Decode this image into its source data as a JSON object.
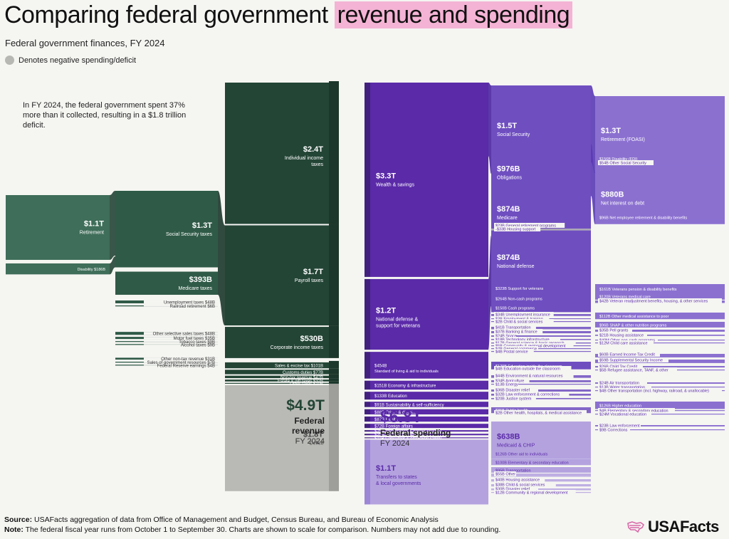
{
  "header": {
    "title_part1": "Comparing federal government ",
    "title_highlight": "revenue and spending",
    "subtitle": "Federal government finances, FY 2024",
    "legend_label": "Denotes negative spending/deficit",
    "annotation": "In FY 2024, the federal government spent 37% more than it collected, resulting in a $1.8 trillion deficit."
  },
  "colors": {
    "revenue_dark": "#234536",
    "revenue_mid": "#2f5a47",
    "revenue_light": "#3f6e5a",
    "deficit": "#b9b9b5",
    "spend_dark": "#5a2aa8",
    "spend_mid": "#6f4ec0",
    "spend_light": "#8b70d0",
    "spend_pale": "#b4a2df",
    "highlight": "#f4b3d4"
  },
  "totals": {
    "revenue": {
      "value": "$4.9T",
      "label": "Federal revenue",
      "year": "FY 2024"
    },
    "spending": {
      "value": "$6.8T",
      "label": "Federal spending",
      "year": "FY 2024"
    }
  },
  "chart_data": {
    "type": "sankey",
    "title": "Comparing federal government revenue and spending",
    "revenue": {
      "level1": [
        {
          "label": "Retirement",
          "value_label": "$1.1T",
          "value": 1100
        },
        {
          "label": "Disability",
          "value_label": "$186B",
          "value": 186
        }
      ],
      "level2": [
        {
          "label": "Social Security taxes",
          "value_label": "$1.3T",
          "value": 1300
        },
        {
          "label": "Medicare taxes",
          "value_label": "$393B",
          "value": 393
        },
        {
          "label": "Unemployment taxes",
          "value_label": "$48B",
          "value": 48
        },
        {
          "label": "Railroad retirement",
          "value_label": "$6B",
          "value": 6
        },
        {
          "label": "Other selective sales taxes",
          "value_label": "$48B",
          "value": 48
        },
        {
          "label": "Motor fuel taxes",
          "value_label": "$35B",
          "value": 35
        },
        {
          "label": "Tobacco taxes",
          "value_label": "$9B",
          "value": 9
        },
        {
          "label": "Alcohol taxes",
          "value_label": "$9B",
          "value": 9
        },
        {
          "label": "Other non-tax revenue",
          "value_label": "$31B",
          "value": 31
        },
        {
          "label": "Sales of government resources",
          "value_label": "$7B",
          "value": 7
        },
        {
          "label": "Federal Reserve earnings",
          "value_label": "$4B",
          "value": 4
        }
      ],
      "level3": [
        {
          "label": "Individual income taxes",
          "value_label": "$2.4T",
          "value": 2400
        },
        {
          "label": "Payroll taxes",
          "value_label": "$1.7T",
          "value": 1700
        },
        {
          "label": "Corporate income taxes",
          "value_label": "$530B",
          "value": 530
        },
        {
          "label": "Sales & excise tax",
          "value_label": "$101B",
          "value": 101
        },
        {
          "label": "Customs duties",
          "value_label": "$77B",
          "value": 77
        },
        {
          "label": "Non-tax revenue",
          "value_label": "$42B",
          "value": 42
        },
        {
          "label": "Estate & gift taxes",
          "value_label": "$32B",
          "value": 32
        },
        {
          "label": "Other taxes",
          "value_label": "$10B",
          "value": 10
        },
        {
          "label": "Deficit",
          "value_label": "$1.8T",
          "value": 1800,
          "negative": true
        }
      ]
    },
    "spending": {
      "level1": [
        {
          "label": "Wealth & savings",
          "value_label": "$3.3T",
          "value": 3300
        },
        {
          "label": "National defense & support for veterans",
          "value_label": "$1.2T",
          "value": 1200
        },
        {
          "label": "Standard of living & aid to individuals",
          "value_label": "$454B",
          "value": 454
        },
        {
          "label": "Economy & infrastructure",
          "value_label": "$151B",
          "value": 151
        },
        {
          "label": "Education",
          "value_label": "$133B",
          "value": 133
        },
        {
          "label": "Sustainability & self-sufficiency",
          "value_label": "$91B",
          "value": 91
        },
        {
          "label": "Crime & disaster",
          "value_label": "$88B",
          "value": 88
        },
        {
          "label": "Health",
          "value_label": "$87B",
          "value": 87
        },
        {
          "label": "Foreign affairs",
          "value_label": "$72B",
          "value": 72
        },
        {
          "label": "Immigration & border security",
          "value_label": "$25B",
          "value": 25
        },
        {
          "label": "General government",
          "value_label": "$25B",
          "value": 25
        },
        {
          "label": "Consumer & employee safety",
          "value_label": "$11B",
          "value": 11
        },
        {
          "label": "Transfers to states & local governments",
          "value_label": "$1.1T",
          "value": 1100
        }
      ],
      "level2": [
        {
          "label": "Social Security",
          "value_label": "$1.5T",
          "value": 1500
        },
        {
          "label": "Obligations",
          "value_label": "$976B",
          "value": 976
        },
        {
          "label": "Medicare",
          "value_label": "$874B",
          "value": 874
        },
        {
          "label": "General retirement programs",
          "value_label": "$23B",
          "value": 23
        },
        {
          "label": "Housing support",
          "value_label": "-$33B",
          "value": -33,
          "negative": true
        },
        {
          "label": "National defense",
          "value_label": "$874B",
          "value": 874
        },
        {
          "label": "Support for veterans",
          "value_label": "$323B",
          "value": 323
        },
        {
          "label": "Non-cash programs",
          "value_label": "$264B",
          "value": 264
        },
        {
          "label": "Cash programs",
          "value_label": "$150B",
          "value": 150
        },
        {
          "label": "Unemployment insurance",
          "value_label": "$34B",
          "value": 34
        },
        {
          "label": "Employment & training",
          "value_label": "$3B",
          "value": 3
        },
        {
          "label": "Child & social services",
          "value_label": "$2B",
          "value": 2
        },
        {
          "label": "Transportation",
          "value_label": "$41B",
          "value": 41
        },
        {
          "label": "Banking & finance",
          "value_label": "$37B",
          "value": 37
        },
        {
          "label": "Space",
          "value_label": "$24B",
          "value": 24
        },
        {
          "label": "Technology infrastructure",
          "value_label": "$18B",
          "value": 18
        },
        {
          "label": "General science & basic research",
          "value_label": "$17B",
          "value": 17
        },
        {
          "label": "Community & regional development",
          "value_label": "$5B",
          "value": 5
        },
        {
          "label": "General commerce",
          "value_label": "$4B",
          "value": 4
        },
        {
          "label": "Postal service",
          "value_label": "$4B",
          "value": 4
        },
        {
          "label": "Education inside the classroom",
          "value_label": "$129B",
          "value": 129
        },
        {
          "label": "Education outside the classroom",
          "value_label": "$4B",
          "value": 4
        },
        {
          "label": "Environment & natural resources",
          "value_label": "$44B",
          "value": 44
        },
        {
          "label": "Agriculture",
          "value_label": "$34B",
          "value": 34
        },
        {
          "label": "Energy",
          "value_label": "$13B",
          "value": 13
        },
        {
          "label": "Disaster relief",
          "value_label": "$36B",
          "value": 36
        },
        {
          "label": "Law enforcement & corrections",
          "value_label": "$32B",
          "value": 32
        },
        {
          "label": "Justice system",
          "value_label": "$20B",
          "value": 20
        },
        {
          "label": "Public health",
          "value_label": "$85B",
          "value": 85
        },
        {
          "label": "Other health, hospitals, & medical assistance",
          "value_label": "$2B",
          "value": 2
        },
        {
          "label": "Medicaid & CHIP",
          "value_label": "$638B",
          "value": 638
        },
        {
          "label": "Other aid to individuals",
          "value_label": "$126B",
          "value": 126
        },
        {
          "label": "Elementary & secondary education",
          "value_label": "$100B",
          "value": 100
        },
        {
          "label": "Transportation",
          "value_label": "$95B",
          "value": 95
        },
        {
          "label": "Other",
          "value_label": "$55B",
          "value": 55
        },
        {
          "label": "Housing assistance",
          "value_label": "$40B",
          "value": 40
        },
        {
          "label": "Child & social services",
          "value_label": "$38B",
          "value": 38
        },
        {
          "label": "Disaster relief",
          "value_label": "$30B",
          "value": 30
        },
        {
          "label": "Community & regional development",
          "value_label": "$12B",
          "value": 12
        }
      ],
      "level3": [
        {
          "label": "Retirement (FOASI)",
          "value_label": "$1.3T",
          "value": 1300
        },
        {
          "label": "Disability (FDI)",
          "value_label": "$156B",
          "value": 156
        },
        {
          "label": "Other Social Security",
          "value_label": "$54B",
          "value": 54
        },
        {
          "label": "Net interest on debt",
          "value_label": "$880B",
          "value": 880
        },
        {
          "label": "Net employee retirement & disability benefits",
          "value_label": "$96B",
          "value": 96
        },
        {
          "label": "Veterans pension & disability benefits",
          "value_label": "$161B",
          "value": 161
        },
        {
          "label": "Veterans medical care",
          "value_label": "$120B",
          "value": 120
        },
        {
          "label": "Veteran readjustment benefits, housing, & other services",
          "value_label": "$42B",
          "value": 42
        },
        {
          "label": "Other medical assistance to poor",
          "value_label": "$112B",
          "value": 112
        },
        {
          "label": "SNAP & other nutrition programs",
          "value_label": "$96B",
          "value": 96
        },
        {
          "label": "Pell grants",
          "value_label": "$35B",
          "value": 35
        },
        {
          "label": "Housing assistance",
          "value_label": "$21B",
          "value": 21
        },
        {
          "label": "Other non-cash programs",
          "value_label": "$40M",
          "value": 0.04
        },
        {
          "label": "Child care assistance",
          "value_label": "$12M",
          "value": 0.012
        },
        {
          "label": "Earned Income Tax Credit",
          "value_label": "$60B",
          "value": 60
        },
        {
          "label": "Supplemental Security Income",
          "value_label": "$59B",
          "value": 59
        },
        {
          "label": "Child Tax Credit",
          "value_label": "$26B",
          "value": 26
        },
        {
          "label": "Refugee assistance, TANF, & other",
          "value_label": "$5B",
          "value": 5
        },
        {
          "label": "Air transportation",
          "value_label": "$24B",
          "value": 24
        },
        {
          "label": "Water transportation",
          "value_label": "$13B",
          "value": 13
        },
        {
          "label": "Other transportation (incl. highway, railroad, & unallocable)",
          "value_label": "$4B",
          "value": 4
        },
        {
          "label": "Higher education",
          "value_label": "$126B",
          "value": 126
        },
        {
          "label": "Elementary & secondary education",
          "value_label": "$4B",
          "value": 4
        },
        {
          "label": "Vocational education",
          "value_label": "$24M",
          "value": 0.024
        },
        {
          "label": "Law enforcement",
          "value_label": "$23B",
          "value": 23
        },
        {
          "label": "Corrections",
          "value_label": "$9B",
          "value": 9
        }
      ]
    },
    "totals": {
      "revenue": 4900,
      "spending": 6800,
      "deficit": 1800,
      "units": "billions USD"
    }
  },
  "footer": {
    "source_label": "Source:",
    "source_text": "USAFacts aggregation of data from Office of Management and Budget, Census Bureau, and Bureau of Economic Analysis",
    "note_label": "Note:",
    "note_text": "The federal fiscal year runs from October 1 to September 30. Charts are shown to scale for comparison. Numbers may not add due to rounding.",
    "logo_text": "USAFacts"
  }
}
